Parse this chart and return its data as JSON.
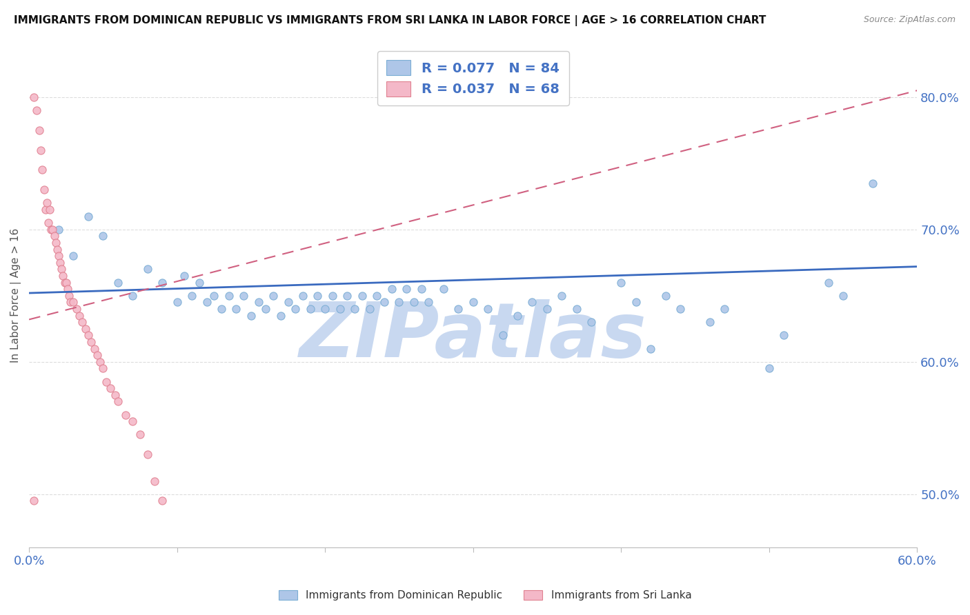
{
  "title": "IMMIGRANTS FROM DOMINICAN REPUBLIC VS IMMIGRANTS FROM SRI LANKA IN LABOR FORCE | AGE > 16 CORRELATION CHART",
  "source": "Source: ZipAtlas.com",
  "ylabel_left": "In Labor Force | Age > 16",
  "xlim": [
    0.0,
    0.6
  ],
  "ylim": [
    0.46,
    0.84
  ],
  "x_ticks": [
    0.0,
    0.1,
    0.2,
    0.3,
    0.4,
    0.5,
    0.6
  ],
  "x_tick_labels": [
    "0.0%",
    "",
    "",
    "",
    "",
    "",
    "60.0%"
  ],
  "y_ticks_right": [
    0.5,
    0.6,
    0.7,
    0.8
  ],
  "y_tick_labels_right": [
    "50.0%",
    "60.0%",
    "70.0%",
    "80.0%"
  ],
  "dr_color": "#aec6e8",
  "dr_edge_color": "#7aadd4",
  "sl_color": "#f4b8c8",
  "sl_edge_color": "#e08090",
  "dr_line_color": "#3a6abf",
  "sl_line_color": "#d06080",
  "dr_R": 0.077,
  "dr_N": 84,
  "sl_R": 0.037,
  "sl_N": 68,
  "legend_label_dr": "Immigrants from Dominican Republic",
  "legend_label_sl": "Immigrants from Sri Lanka",
  "dr_scatter_x": [
    0.02,
    0.03,
    0.04,
    0.05,
    0.06,
    0.07,
    0.08,
    0.09,
    0.1,
    0.105,
    0.11,
    0.115,
    0.12,
    0.125,
    0.13,
    0.135,
    0.14,
    0.145,
    0.15,
    0.155,
    0.16,
    0.165,
    0.17,
    0.175,
    0.18,
    0.185,
    0.19,
    0.195,
    0.2,
    0.205,
    0.21,
    0.215,
    0.22,
    0.225,
    0.23,
    0.235,
    0.24,
    0.245,
    0.25,
    0.255,
    0.26,
    0.265,
    0.27,
    0.28,
    0.29,
    0.3,
    0.31,
    0.32,
    0.33,
    0.34,
    0.35,
    0.36,
    0.37,
    0.38,
    0.4,
    0.41,
    0.42,
    0.43,
    0.44,
    0.46,
    0.47,
    0.5,
    0.51,
    0.54,
    0.55,
    0.57
  ],
  "dr_scatter_y": [
    0.7,
    0.68,
    0.71,
    0.695,
    0.66,
    0.65,
    0.67,
    0.66,
    0.645,
    0.665,
    0.65,
    0.66,
    0.645,
    0.65,
    0.64,
    0.65,
    0.64,
    0.65,
    0.635,
    0.645,
    0.64,
    0.65,
    0.635,
    0.645,
    0.64,
    0.65,
    0.64,
    0.65,
    0.64,
    0.65,
    0.64,
    0.65,
    0.64,
    0.65,
    0.64,
    0.65,
    0.645,
    0.655,
    0.645,
    0.655,
    0.645,
    0.655,
    0.645,
    0.655,
    0.64,
    0.645,
    0.64,
    0.62,
    0.635,
    0.645,
    0.64,
    0.65,
    0.64,
    0.63,
    0.66,
    0.645,
    0.61,
    0.65,
    0.64,
    0.63,
    0.64,
    0.595,
    0.62,
    0.66,
    0.65,
    0.735
  ],
  "sl_scatter_x": [
    0.003,
    0.005,
    0.007,
    0.008,
    0.009,
    0.01,
    0.011,
    0.012,
    0.013,
    0.014,
    0.015,
    0.016,
    0.017,
    0.018,
    0.019,
    0.02,
    0.021,
    0.022,
    0.023,
    0.024,
    0.025,
    0.026,
    0.027,
    0.028,
    0.03,
    0.032,
    0.034,
    0.036,
    0.038,
    0.04,
    0.042,
    0.044,
    0.046,
    0.048,
    0.05,
    0.052,
    0.055,
    0.058,
    0.06,
    0.065,
    0.07,
    0.075,
    0.08,
    0.085,
    0.09
  ],
  "sl_scatter_y": [
    0.8,
    0.79,
    0.775,
    0.76,
    0.745,
    0.73,
    0.715,
    0.72,
    0.705,
    0.715,
    0.7,
    0.7,
    0.695,
    0.69,
    0.685,
    0.68,
    0.675,
    0.67,
    0.665,
    0.66,
    0.66,
    0.655,
    0.65,
    0.645,
    0.645,
    0.64,
    0.635,
    0.63,
    0.625,
    0.62,
    0.615,
    0.61,
    0.605,
    0.6,
    0.595,
    0.585,
    0.58,
    0.575,
    0.57,
    0.56,
    0.555,
    0.545,
    0.53,
    0.51,
    0.495
  ],
  "sl_outlier_x": [
    0.003
  ],
  "sl_outlier_y": [
    0.495
  ],
  "watermark_text": "ZIPatlas",
  "watermark_color": "#c8d8f0",
  "background_color": "#ffffff",
  "grid_color": "#dddddd",
  "dr_trend_x": [
    0.0,
    0.6
  ],
  "dr_trend_y": [
    0.652,
    0.672
  ],
  "sl_trend_x": [
    0.0,
    0.6
  ],
  "sl_trend_y": [
    0.632,
    0.805
  ]
}
